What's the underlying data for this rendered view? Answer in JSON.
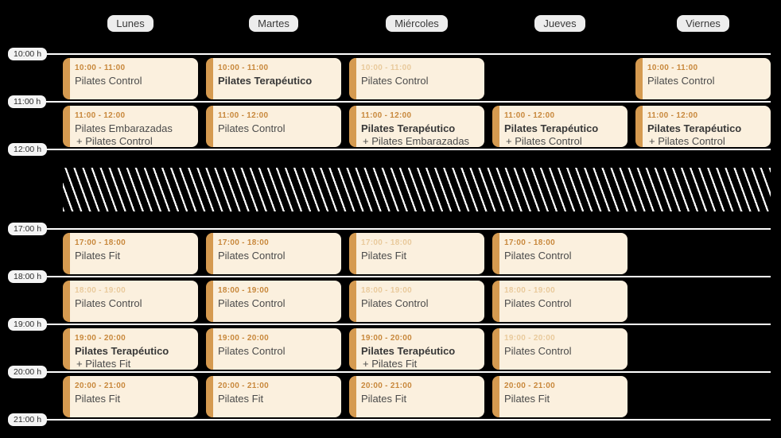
{
  "colors": {
    "background": "#000000",
    "card_bg": "#fbf0de",
    "card_accent": "#d59a50",
    "time_text": "#c8883c",
    "time_text_muted": "#e9ca9c",
    "grid_line": "#ffffff"
  },
  "days": [
    {
      "label": "Lunes"
    },
    {
      "label": "Martes"
    },
    {
      "label": "Miércoles"
    },
    {
      "label": "Jueves"
    },
    {
      "label": "Viernes"
    }
  ],
  "time_labels": [
    {
      "label": "10:00 h"
    },
    {
      "label": "11:00 h"
    },
    {
      "label": "12:00 h"
    },
    {
      "label": "17:00 h"
    },
    {
      "label": "18:00 h"
    },
    {
      "label": "19:00 h"
    },
    {
      "label": "20:00 h"
    },
    {
      "label": "21:00 h"
    }
  ],
  "closed_period": {
    "start_label": "12:00 h",
    "end_label": "17:00 h"
  },
  "events": [
    {
      "day": "Lunes",
      "time": "10:00 - 11:00",
      "title": "Pilates Control",
      "subtitle": "",
      "title_bold": false,
      "time_muted": false
    },
    {
      "day": "Lunes",
      "time": "11:00 - 12:00",
      "title": "Pilates Embarazadas",
      "subtitle": "+ Pilates Control",
      "title_bold": false,
      "time_muted": false
    },
    {
      "day": "Lunes",
      "time": "17:00 - 18:00",
      "title": "Pilates Fit",
      "subtitle": "",
      "title_bold": false,
      "time_muted": false
    },
    {
      "day": "Lunes",
      "time": "18:00 - 19:00",
      "title": "Pilates Control",
      "subtitle": "",
      "title_bold": false,
      "time_muted": true
    },
    {
      "day": "Lunes",
      "time": "19:00 - 20:00",
      "title": "Pilates Terapéutico",
      "subtitle": "+ Pilates Fit",
      "title_bold": true,
      "time_muted": false
    },
    {
      "day": "Lunes",
      "time": "20:00 - 21:00",
      "title": "Pilates Fit",
      "subtitle": "",
      "title_bold": false,
      "time_muted": false
    },
    {
      "day": "Martes",
      "time": "10:00 - 11:00",
      "title": "Pilates Terapéutico",
      "subtitle": "",
      "title_bold": true,
      "time_muted": false
    },
    {
      "day": "Martes",
      "time": "11:00 - 12:00",
      "title": "Pilates Control",
      "subtitle": "",
      "title_bold": false,
      "time_muted": false
    },
    {
      "day": "Martes",
      "time": "17:00 - 18:00",
      "title": "Pilates Control",
      "subtitle": "",
      "title_bold": false,
      "time_muted": false
    },
    {
      "day": "Martes",
      "time": "18:00 - 19:00",
      "title": "Pilates Control",
      "subtitle": "",
      "title_bold": false,
      "time_muted": false
    },
    {
      "day": "Martes",
      "time": "19:00 - 20:00",
      "title": "Pilates Control",
      "subtitle": "",
      "title_bold": false,
      "time_muted": false
    },
    {
      "day": "Martes",
      "time": "20:00 - 21:00",
      "title": "Pilates Fit",
      "subtitle": "",
      "title_bold": false,
      "time_muted": false
    },
    {
      "day": "Miércoles",
      "time": "10:00 - 11:00",
      "title": "Pilates Control",
      "subtitle": "",
      "title_bold": false,
      "time_muted": true
    },
    {
      "day": "Miércoles",
      "time": "11:00 - 12:00",
      "title": "Pilates Terapéutico",
      "subtitle": "+ Pilates Embarazadas",
      "title_bold": true,
      "time_muted": false
    },
    {
      "day": "Miércoles",
      "time": "17:00 - 18:00",
      "title": "Pilates Fit",
      "subtitle": "",
      "title_bold": false,
      "time_muted": true
    },
    {
      "day": "Miércoles",
      "time": "18:00 - 19:00",
      "title": "Pilates Control",
      "subtitle": "",
      "title_bold": false,
      "time_muted": true
    },
    {
      "day": "Miércoles",
      "time": "19:00 - 20:00",
      "title": "Pilates Terapéutico",
      "subtitle": "+ Pilates Fit",
      "title_bold": true,
      "time_muted": false
    },
    {
      "day": "Miércoles",
      "time": "20:00 - 21:00",
      "title": "Pilates Fit",
      "subtitle": "",
      "title_bold": false,
      "time_muted": false
    },
    {
      "day": "Jueves",
      "time": "11:00 - 12:00",
      "title": "Pilates Terapéutico",
      "subtitle": "+ Pilates Control",
      "title_bold": true,
      "time_muted": false
    },
    {
      "day": "Jueves",
      "time": "17:00 - 18:00",
      "title": "Pilates Control",
      "subtitle": "",
      "title_bold": false,
      "time_muted": false
    },
    {
      "day": "Jueves",
      "time": "18:00 - 19:00",
      "title": "Pilates Control",
      "subtitle": "",
      "title_bold": false,
      "time_muted": true
    },
    {
      "day": "Jueves",
      "time": "19:00 - 20:00",
      "title": "Pilates Control",
      "subtitle": "",
      "title_bold": false,
      "time_muted": true
    },
    {
      "day": "Jueves",
      "time": "20:00 - 21:00",
      "title": "Pilates Fit",
      "subtitle": "",
      "title_bold": false,
      "time_muted": false
    },
    {
      "day": "Viernes",
      "time": "10:00 - 11:00",
      "title": "Pilates Control",
      "subtitle": "",
      "title_bold": false,
      "time_muted": false
    },
    {
      "day": "Viernes",
      "time": "11:00 - 12:00",
      "title": "Pilates Terapéutico",
      "subtitle": "+ Pilates Control",
      "title_bold": true,
      "time_muted": false
    }
  ]
}
